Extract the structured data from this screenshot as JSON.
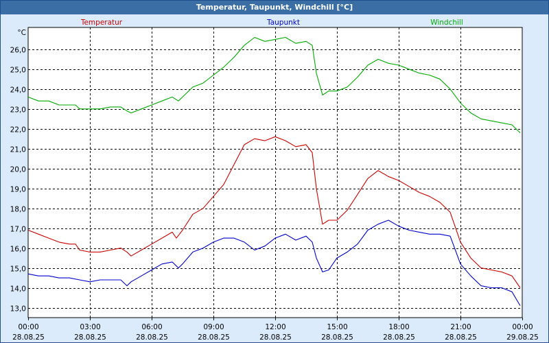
{
  "window": {
    "title": "Temperatur, Taupunkt, Windchill [°C]"
  },
  "colors": {
    "background": "#dcebfb",
    "plot_bg": "#ffffff",
    "titlebar": "#3a6ea5",
    "temperatur": "#cc0000",
    "taupunkt": "#0000cc",
    "windchill": "#00aa00"
  },
  "chart_data": {
    "type": "line",
    "title": "Temperatur, Taupunkt, Windchill [°C]",
    "ylabel": "°C",
    "xlabel": "",
    "ylim": [
      12.5,
      27.1
    ],
    "yticks": [
      13.0,
      14.0,
      15.0,
      16.0,
      17.0,
      18.0,
      19.0,
      20.0,
      21.0,
      22.0,
      23.0,
      24.0,
      25.0,
      26.0
    ],
    "ytick_labels": [
      "13,0",
      "14,0",
      "15,0",
      "16,0",
      "17,0",
      "18,0",
      "19,0",
      "20,0",
      "21,0",
      "22,0",
      "23,0",
      "24,0",
      "25,0",
      "26,0"
    ],
    "xlim": [
      0,
      24
    ],
    "xticks": [
      0,
      3,
      6,
      9,
      12,
      15,
      18,
      21,
      24
    ],
    "xtick_labels": [
      [
        "00:00",
        "28.08.25"
      ],
      [
        "03:00",
        "28.08.25"
      ],
      [
        "06:00",
        "28.08.25"
      ],
      [
        "09:00",
        "28.08.25"
      ],
      [
        "12:00",
        "28.08.25"
      ],
      [
        "15:00",
        "28.08.25"
      ],
      [
        "18:00",
        "28.08.25"
      ],
      [
        "21:00",
        "28.08.25"
      ],
      [
        "00:00",
        "29.08.25"
      ]
    ],
    "grid": true,
    "legend": "top",
    "series": [
      {
        "name": "Temperatur",
        "color": "#cc0000",
        "points": [
          [
            0,
            16.9
          ],
          [
            0.5,
            16.7
          ],
          [
            1,
            16.5
          ],
          [
            1.5,
            16.3
          ],
          [
            2,
            16.2
          ],
          [
            2.3,
            16.2
          ],
          [
            2.5,
            15.9
          ],
          [
            3,
            15.8
          ],
          [
            3.5,
            15.8
          ],
          [
            4,
            15.9
          ],
          [
            4.5,
            16.0
          ],
          [
            4.8,
            15.8
          ],
          [
            5,
            15.6
          ],
          [
            5.5,
            15.9
          ],
          [
            6,
            16.2
          ],
          [
            6.5,
            16.5
          ],
          [
            7,
            16.8
          ],
          [
            7.2,
            16.5
          ],
          [
            7.5,
            16.9
          ],
          [
            8,
            17.7
          ],
          [
            8.5,
            18.0
          ],
          [
            9,
            18.6
          ],
          [
            9.5,
            19.2
          ],
          [
            10,
            20.2
          ],
          [
            10.5,
            21.2
          ],
          [
            11,
            21.5
          ],
          [
            11.5,
            21.4
          ],
          [
            12,
            21.6
          ],
          [
            12.5,
            21.4
          ],
          [
            13,
            21.1
          ],
          [
            13.5,
            21.2
          ],
          [
            13.8,
            20.8
          ],
          [
            14,
            19.0
          ],
          [
            14.3,
            17.2
          ],
          [
            14.6,
            17.4
          ],
          [
            15,
            17.4
          ],
          [
            15.5,
            17.9
          ],
          [
            16,
            18.7
          ],
          [
            16.5,
            19.5
          ],
          [
            17,
            19.9
          ],
          [
            17.5,
            19.6
          ],
          [
            18,
            19.4
          ],
          [
            18.5,
            19.1
          ],
          [
            19,
            18.8
          ],
          [
            19.5,
            18.6
          ],
          [
            20,
            18.3
          ],
          [
            20.5,
            17.8
          ],
          [
            21,
            16.3
          ],
          [
            21.5,
            15.5
          ],
          [
            22,
            15.0
          ],
          [
            22.5,
            14.9
          ],
          [
            23,
            14.8
          ],
          [
            23.5,
            14.6
          ],
          [
            23.9,
            14.0
          ]
        ]
      },
      {
        "name": "Taupunkt",
        "color": "#0000cc",
        "points": [
          [
            0,
            14.7
          ],
          [
            0.5,
            14.6
          ],
          [
            1,
            14.6
          ],
          [
            1.5,
            14.5
          ],
          [
            2,
            14.5
          ],
          [
            2.5,
            14.4
          ],
          [
            3,
            14.3
          ],
          [
            3.5,
            14.4
          ],
          [
            4,
            14.4
          ],
          [
            4.5,
            14.4
          ],
          [
            4.8,
            14.1
          ],
          [
            5,
            14.3
          ],
          [
            5.5,
            14.6
          ],
          [
            6,
            14.9
          ],
          [
            6.5,
            15.2
          ],
          [
            7,
            15.3
          ],
          [
            7.3,
            15.0
          ],
          [
            7.5,
            15.2
          ],
          [
            8,
            15.8
          ],
          [
            8.5,
            16.0
          ],
          [
            9,
            16.3
          ],
          [
            9.5,
            16.5
          ],
          [
            10,
            16.5
          ],
          [
            10.5,
            16.3
          ],
          [
            11,
            15.9
          ],
          [
            11.5,
            16.1
          ],
          [
            12,
            16.5
          ],
          [
            12.5,
            16.7
          ],
          [
            13,
            16.4
          ],
          [
            13.5,
            16.6
          ],
          [
            13.8,
            16.3
          ],
          [
            14,
            15.5
          ],
          [
            14.3,
            14.8
          ],
          [
            14.6,
            14.9
          ],
          [
            15,
            15.5
          ],
          [
            15.5,
            15.8
          ],
          [
            16,
            16.2
          ],
          [
            16.5,
            16.9
          ],
          [
            17,
            17.2
          ],
          [
            17.5,
            17.4
          ],
          [
            18,
            17.1
          ],
          [
            18.5,
            16.9
          ],
          [
            19,
            16.8
          ],
          [
            19.5,
            16.7
          ],
          [
            20,
            16.7
          ],
          [
            20.5,
            16.6
          ],
          [
            21,
            15.2
          ],
          [
            21.5,
            14.6
          ],
          [
            22,
            14.1
          ],
          [
            22.5,
            14.0
          ],
          [
            23,
            14.0
          ],
          [
            23.5,
            13.8
          ],
          [
            23.9,
            13.1
          ]
        ]
      },
      {
        "name": "Windchill",
        "color": "#00aa00",
        "points": [
          [
            0,
            23.6
          ],
          [
            0.5,
            23.4
          ],
          [
            1,
            23.4
          ],
          [
            1.5,
            23.2
          ],
          [
            2,
            23.2
          ],
          [
            2.3,
            23.2
          ],
          [
            2.5,
            23.0
          ],
          [
            3,
            23.0
          ],
          [
            3.5,
            23.0
          ],
          [
            4,
            23.1
          ],
          [
            4.5,
            23.1
          ],
          [
            4.8,
            22.9
          ],
          [
            5,
            22.8
          ],
          [
            5.5,
            23.0
          ],
          [
            6,
            23.2
          ],
          [
            6.5,
            23.4
          ],
          [
            7,
            23.6
          ],
          [
            7.3,
            23.4
          ],
          [
            7.5,
            23.6
          ],
          [
            8,
            24.1
          ],
          [
            8.5,
            24.3
          ],
          [
            9,
            24.7
          ],
          [
            9.5,
            25.1
          ],
          [
            10,
            25.6
          ],
          [
            10.5,
            26.2
          ],
          [
            11,
            26.6
          ],
          [
            11.5,
            26.4
          ],
          [
            12,
            26.5
          ],
          [
            12.5,
            26.6
          ],
          [
            13,
            26.3
          ],
          [
            13.5,
            26.4
          ],
          [
            13.8,
            26.2
          ],
          [
            14,
            24.8
          ],
          [
            14.3,
            23.7
          ],
          [
            14.6,
            23.9
          ],
          [
            15,
            23.9
          ],
          [
            15.5,
            24.1
          ],
          [
            16,
            24.6
          ],
          [
            16.5,
            25.2
          ],
          [
            17,
            25.5
          ],
          [
            17.5,
            25.3
          ],
          [
            18,
            25.2
          ],
          [
            18.5,
            25.0
          ],
          [
            19,
            24.8
          ],
          [
            19.5,
            24.7
          ],
          [
            20,
            24.5
          ],
          [
            20.5,
            24.0
          ],
          [
            21,
            23.3
          ],
          [
            21.5,
            22.8
          ],
          [
            22,
            22.5
          ],
          [
            22.5,
            22.4
          ],
          [
            23,
            22.3
          ],
          [
            23.5,
            22.2
          ],
          [
            23.9,
            21.8
          ]
        ]
      }
    ]
  }
}
